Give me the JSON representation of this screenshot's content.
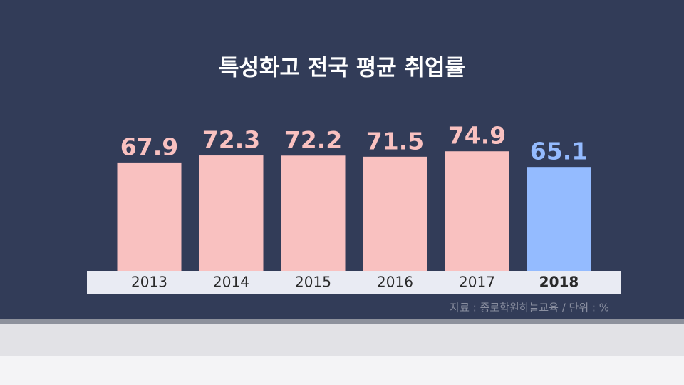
{
  "chart_data": {
    "type": "bar",
    "title": "특성화고 전국 평균 취업률",
    "categories": [
      "2013",
      "2014",
      "2015",
      "2016",
      "2017",
      "2018"
    ],
    "values": [
      67.9,
      72.3,
      72.2,
      71.5,
      74.9,
      65.1
    ],
    "colors": [
      "#f9c1c0",
      "#f9c1c0",
      "#f9c1c0",
      "#f9c1c0",
      "#f9c1c0",
      "#94bbff"
    ],
    "ylim": [
      0,
      100
    ],
    "source": "자료 : 종로학원하늘교육 / 단위 : %"
  }
}
